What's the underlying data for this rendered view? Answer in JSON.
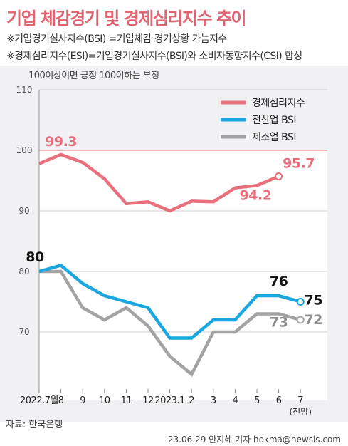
{
  "header": {
    "title": "기업 체감경기 및 경제심리지수 추이",
    "note1": "※기업경기실사지수(BSI) =기업체감 경기상황 가늠지수",
    "note2": "※경제심리지수(ESI)=기업경기실사지수(BSI)와 소비자동향지수(CSI) 합성"
  },
  "footer": {
    "source": "자료: 한국은행",
    "credit": "23.06.29 안지혜 기자 hokma@newsis.com"
  },
  "chart_data": {
    "type": "line",
    "annotation": "100이상이면 긍정 100이하는 부정",
    "categories": [
      "2022.7월",
      "8",
      "9",
      "10",
      "11",
      "12",
      "2023.1",
      "2",
      "3",
      "4",
      "5",
      "6",
      "7"
    ],
    "category_sublabels": {
      "7": "(전망)"
    },
    "ylim": [
      62,
      110
    ],
    "yticks": [
      70,
      80,
      90,
      100,
      110
    ],
    "reference_line": 100,
    "grid": true,
    "legend_position": "top-right",
    "series": [
      {
        "name": "경제심리지수",
        "color": "#e8707c",
        "values": [
          97.8,
          99.3,
          98.0,
          95.3,
          91.2,
          91.5,
          90.0,
          91.6,
          91.5,
          93.8,
          94.2,
          95.7,
          null
        ],
        "point_labels": [
          {
            "index": 1,
            "text": "99.3"
          },
          {
            "index": 10,
            "text": "94.2"
          },
          {
            "index": 11,
            "text": "95.7"
          }
        ]
      },
      {
        "name": "전산업 BSI",
        "color": "#1aa6df",
        "values": [
          80,
          81,
          78,
          76,
          75,
          74,
          69,
          69,
          72,
          72,
          76,
          76,
          75
        ],
        "point_labels": [
          {
            "index": 0,
            "text": "80"
          },
          {
            "index": 11,
            "text": "76"
          },
          {
            "index": 12,
            "text": "75"
          }
        ]
      },
      {
        "name": "제조업 BSI",
        "color": "#a3a3a3",
        "values": [
          80,
          80,
          74,
          72,
          74,
          71,
          66,
          63,
          70,
          70,
          73,
          73,
          72
        ],
        "point_labels": [
          {
            "index": 11,
            "text": "73"
          },
          {
            "index": 12,
            "text": "72"
          }
        ]
      }
    ]
  }
}
